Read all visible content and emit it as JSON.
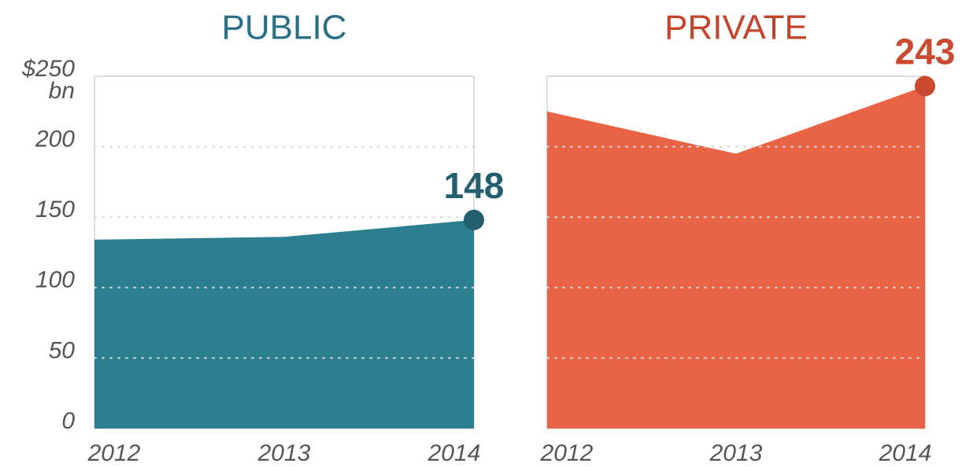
{
  "chart_data": [
    {
      "type": "area",
      "title": "PUBLIC",
      "title_color": "#2b6f86",
      "color": "#2b7f8f",
      "marker_color": "#245f70",
      "x": [
        "2012",
        "2013",
        "2014"
      ],
      "values": [
        134,
        136,
        148
      ],
      "ylim": [
        0,
        250
      ],
      "yticks": [
        0,
        50,
        100,
        150,
        200,
        {
          "value": 250,
          "label": "$250"
        }
      ],
      "y_unit": "bn",
      "tick_labels": true,
      "grid": true
    },
    {
      "type": "area",
      "title": "PRIVATE",
      "title_color": "#c2452b",
      "color": "#e86444",
      "marker_color": "#c94a2e",
      "x": [
        "2012",
        "2013",
        "2014"
      ],
      "values": [
        225,
        195,
        243
      ],
      "ylim": [
        0,
        250
      ],
      "yticks": [
        0,
        50,
        100,
        150,
        200,
        250
      ],
      "tick_labels": false,
      "grid": true
    }
  ]
}
